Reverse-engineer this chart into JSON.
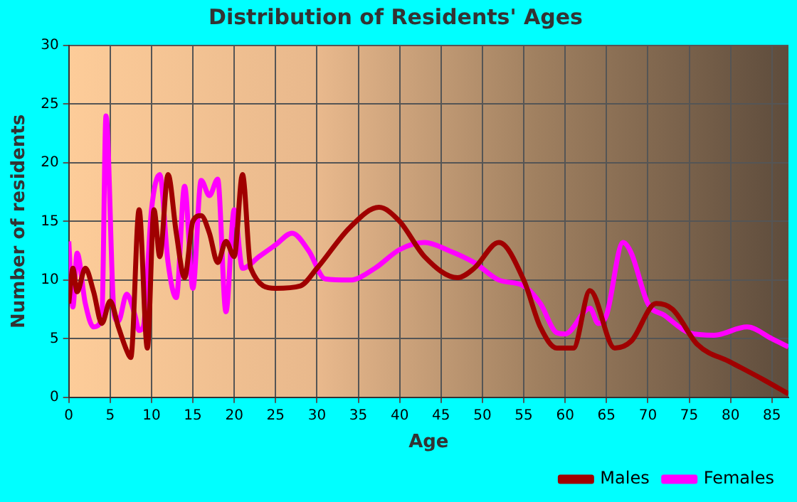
{
  "chart_data": {
    "type": "line",
    "title": "Distribution of Residents' Ages",
    "xlabel": "Age",
    "ylabel": "Number of residents",
    "xlim": [
      0,
      87
    ],
    "xticks": [
      0,
      5,
      10,
      15,
      20,
      25,
      30,
      35,
      40,
      45,
      50,
      55,
      60,
      65,
      70,
      75,
      80,
      85
    ],
    "ylim": [
      0,
      30
    ],
    "yticks": [
      0,
      5,
      10,
      15,
      20,
      25,
      30
    ],
    "grid": true,
    "legend": "bottom right",
    "marker": "none",
    "line_style": "solid",
    "series": [
      {
        "name": "Males",
        "color": "#a00000",
        "x": [
          0,
          0.5,
          1,
          2,
          3,
          4,
          5,
          6,
          7,
          7.5,
          8.5,
          9.5,
          10.3,
          11,
          12,
          13,
          14,
          15,
          16,
          17,
          18,
          19,
          20,
          21,
          22,
          25,
          28,
          30,
          34,
          37.5,
          40,
          43,
          47,
          49,
          52,
          55,
          57,
          59,
          61,
          63,
          66,
          68,
          71,
          73,
          76,
          80,
          84,
          87
        ],
        "values": [
          8,
          11,
          9,
          11,
          9,
          6.3,
          8.2,
          6,
          4,
          3.4,
          16,
          4.2,
          16,
          12,
          19,
          14,
          10.2,
          15,
          15.5,
          14,
          11.5,
          13.3,
          12,
          19,
          11,
          9.3,
          9.5,
          11,
          14.5,
          16.2,
          15,
          12,
          10.2,
          11,
          13.2,
          10,
          6,
          4.2,
          4.2,
          9.1,
          4.2,
          4.8,
          8,
          7.5,
          4.5,
          3,
          1.5,
          0.3
        ]
      },
      {
        "name": "Females",
        "color": "#ff00ff",
        "x": [
          0,
          0.5,
          1,
          2,
          3,
          4,
          4.5,
          5.5,
          6,
          7,
          8,
          8.5,
          9,
          10,
          11,
          12,
          13,
          14,
          15,
          16,
          17,
          18,
          19,
          20,
          21,
          23,
          25,
          27,
          29,
          31,
          34,
          37,
          40,
          43,
          46,
          49,
          52,
          55,
          57,
          59,
          60,
          63,
          64,
          65,
          67,
          68,
          70,
          72,
          75,
          78,
          82,
          85,
          87
        ],
        "values": [
          13.3,
          7.7,
          12.3,
          8,
          6,
          6.8,
          24,
          7,
          6.5,
          8.8,
          7,
          5.7,
          6,
          16,
          19,
          11.5,
          8.5,
          18,
          9.3,
          18.5,
          17.2,
          18.6,
          7.3,
          16,
          11,
          12,
          13,
          14,
          12.5,
          10.1,
          10,
          11,
          12.6,
          13.2,
          12.5,
          11.5,
          10,
          9.5,
          8,
          5.5,
          5.4,
          7.6,
          6.3,
          7,
          13.2,
          12.3,
          8,
          7,
          5.5,
          5.3,
          6,
          5,
          4.3
        ]
      }
    ]
  }
}
